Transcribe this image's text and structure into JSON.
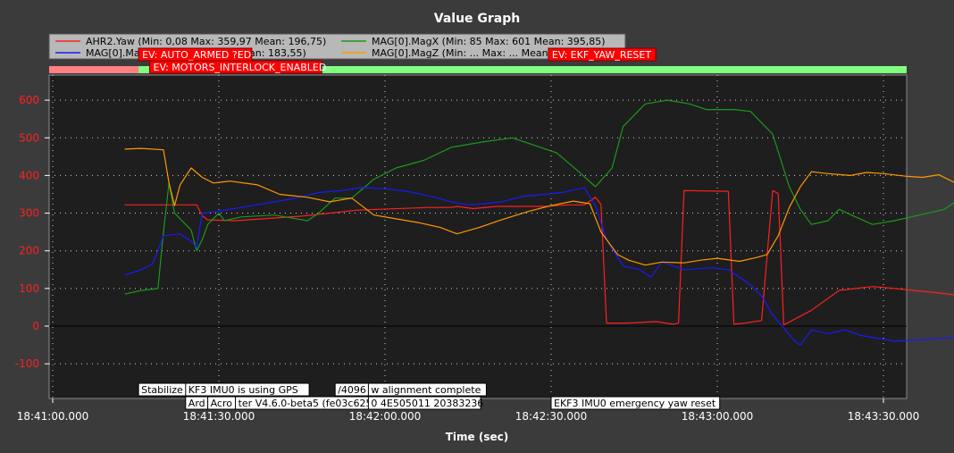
{
  "chart_data": {
    "type": "line",
    "title": "Value Graph",
    "xlabel": "Time (sec)",
    "ylabel": "",
    "x_ticks": [
      "18:41:00.000",
      "18:41:30.000",
      "18:42:00.000",
      "18:42:30.000",
      "18:43:00.000",
      "18:43:30.000"
    ],
    "x_range_sec": [
      0,
      150
    ],
    "ylim": [
      -190,
      690
    ],
    "y_ticks": [
      -100,
      0,
      100,
      200,
      300,
      400,
      500,
      600
    ],
    "grid": true,
    "legend_position": "top-left",
    "series": [
      {
        "name": "AHR2.Yaw",
        "stats": "(Min: 0,08 Max: 359,97 Mean: 196,75)",
        "color": "#ff2020",
        "points": [
          [
            13,
            322
          ],
          [
            26,
            322
          ],
          [
            27,
            293
          ],
          [
            28,
            282
          ],
          [
            33,
            280
          ],
          [
            45,
            292
          ],
          [
            55,
            308
          ],
          [
            68,
            315
          ],
          [
            72,
            315
          ],
          [
            73,
            318
          ],
          [
            76,
            312
          ],
          [
            80,
            318
          ],
          [
            84,
            318
          ],
          [
            89,
            318
          ],
          [
            93,
            322
          ],
          [
            96,
            322
          ],
          [
            98,
            342
          ],
          [
            99,
            323
          ],
          [
            100,
            8
          ],
          [
            104,
            8
          ],
          [
            109,
            12
          ],
          [
            112,
            5
          ],
          [
            113,
            8
          ],
          [
            114,
            360
          ],
          [
            122,
            358
          ],
          [
            123,
            5
          ],
          [
            125,
            8
          ],
          [
            128,
            15
          ],
          [
            130,
            360
          ],
          [
            131,
            352
          ],
          [
            132,
            3
          ],
          [
            137,
            42
          ],
          [
            142,
            95
          ],
          [
            148,
            105
          ],
          [
            152,
            100
          ],
          [
            160,
            88
          ],
          [
            170,
            70
          ],
          [
            174,
            55
          ],
          [
            178,
            15
          ],
          [
            182,
            6
          ],
          [
            186,
            2
          ],
          [
            188,
            0
          ]
        ]
      },
      {
        "name": "MAG[0].MagX",
        "stats": "(Min: 85 Max: 601 Mean: 395,85)",
        "color": "#1a9a1a",
        "points": [
          [
            13,
            85
          ],
          [
            16,
            95
          ],
          [
            19,
            100
          ],
          [
            20,
            250
          ],
          [
            21,
            380
          ],
          [
            22,
            300
          ],
          [
            24,
            270
          ],
          [
            25,
            255
          ],
          [
            26,
            200
          ],
          [
            27,
            230
          ],
          [
            28,
            270
          ],
          [
            30,
            300
          ],
          [
            31,
            280
          ],
          [
            34,
            290
          ],
          [
            40,
            295
          ],
          [
            46,
            280
          ],
          [
            48,
            300
          ],
          [
            51,
            340
          ],
          [
            54,
            340
          ],
          [
            58,
            390
          ],
          [
            62,
            420
          ],
          [
            67,
            440
          ],
          [
            72,
            475
          ],
          [
            78,
            490
          ],
          [
            83,
            500
          ],
          [
            87,
            480
          ],
          [
            91,
            460
          ],
          [
            95,
            410
          ],
          [
            98,
            370
          ],
          [
            101,
            420
          ],
          [
            103,
            530
          ],
          [
            107,
            590
          ],
          [
            111,
            600
          ],
          [
            115,
            590
          ],
          [
            118,
            575
          ],
          [
            123,
            575
          ],
          [
            126,
            570
          ],
          [
            128,
            540
          ],
          [
            130,
            510
          ],
          [
            133,
            370
          ],
          [
            135,
            310
          ],
          [
            137,
            270
          ],
          [
            140,
            280
          ],
          [
            142,
            310
          ],
          [
            145,
            290
          ],
          [
            148,
            270
          ],
          [
            152,
            280
          ],
          [
            155,
            290
          ],
          [
            158,
            300
          ],
          [
            161,
            310
          ],
          [
            163,
            330
          ],
          [
            165,
            370
          ],
          [
            168,
            430
          ],
          [
            171,
            460
          ],
          [
            174,
            470
          ],
          [
            178,
            470
          ]
        ]
      },
      {
        "name": "MAG[0].MagY",
        "stats": "(Min: ... Max: ... Mean: 183,55)",
        "color": "#1a1aff",
        "points": [
          [
            13,
            135
          ],
          [
            16,
            150
          ],
          [
            18,
            165
          ],
          [
            19,
            200
          ],
          [
            20,
            240
          ],
          [
            23,
            245
          ],
          [
            25,
            225
          ],
          [
            26,
            210
          ],
          [
            27,
            300
          ],
          [
            30,
            305
          ],
          [
            34,
            315
          ],
          [
            40,
            330
          ],
          [
            44,
            340
          ],
          [
            48,
            355
          ],
          [
            52,
            360
          ],
          [
            56,
            368
          ],
          [
            60,
            365
          ],
          [
            64,
            358
          ],
          [
            69,
            342
          ],
          [
            72,
            330
          ],
          [
            75,
            322
          ],
          [
            78,
            325
          ],
          [
            81,
            330
          ],
          [
            85,
            345
          ],
          [
            89,
            350
          ],
          [
            92,
            355
          ],
          [
            96,
            368
          ],
          [
            98,
            320
          ],
          [
            100,
            230
          ],
          [
            103,
            160
          ],
          [
            106,
            150
          ],
          [
            108,
            130
          ],
          [
            110,
            170
          ],
          [
            114,
            150
          ],
          [
            119,
            155
          ],
          [
            122,
            150
          ],
          [
            124,
            130
          ],
          [
            126,
            110
          ],
          [
            128,
            80
          ],
          [
            130,
            30
          ],
          [
            132,
            -5
          ],
          [
            134,
            -40
          ],
          [
            135,
            -50
          ],
          [
            137,
            -10
          ],
          [
            140,
            -20
          ],
          [
            143,
            -10
          ],
          [
            146,
            -25
          ],
          [
            152,
            -40
          ],
          [
            158,
            -35
          ],
          [
            163,
            -30
          ],
          [
            166,
            -60
          ],
          [
            169,
            -50
          ],
          [
            171,
            -25
          ],
          [
            173,
            -8
          ],
          [
            175,
            -35
          ],
          [
            178,
            -25
          ],
          [
            181,
            -8
          ],
          [
            183,
            0
          ]
        ]
      },
      {
        "name": "MAG[0].MagZ",
        "stats": "(Min: ... Max: ... Mean: 225,04)",
        "color": "#ff9900",
        "points": [
          [
            13,
            470
          ],
          [
            16,
            472
          ],
          [
            20,
            468
          ],
          [
            21,
            380
          ],
          [
            22,
            320
          ],
          [
            23,
            375
          ],
          [
            25,
            420
          ],
          [
            27,
            395
          ],
          [
            29,
            380
          ],
          [
            32,
            385
          ],
          [
            37,
            375
          ],
          [
            41,
            350
          ],
          [
            46,
            342
          ],
          [
            50,
            330
          ],
          [
            54,
            340
          ],
          [
            58,
            295
          ],
          [
            62,
            285
          ],
          [
            66,
            275
          ],
          [
            70,
            262
          ],
          [
            73,
            245
          ],
          [
            77,
            262
          ],
          [
            81,
            282
          ],
          [
            86,
            305
          ],
          [
            90,
            320
          ],
          [
            94,
            332
          ],
          [
            97,
            325
          ],
          [
            99,
            250
          ],
          [
            102,
            190
          ],
          [
            104,
            175
          ],
          [
            107,
            162
          ],
          [
            110,
            170
          ],
          [
            114,
            168
          ],
          [
            117,
            175
          ],
          [
            120,
            180
          ],
          [
            124,
            172
          ],
          [
            127,
            182
          ],
          [
            129,
            190
          ],
          [
            131,
            240
          ],
          [
            133,
            315
          ],
          [
            135,
            370
          ],
          [
            137,
            410
          ],
          [
            140,
            405
          ],
          [
            144,
            400
          ],
          [
            147,
            408
          ],
          [
            150,
            405
          ],
          [
            154,
            398
          ],
          [
            157,
            395
          ],
          [
            160,
            402
          ],
          [
            163,
            380
          ],
          [
            165,
            355
          ],
          [
            167,
            318
          ],
          [
            170,
            298
          ],
          [
            174,
            296
          ],
          [
            178,
            285
          ],
          [
            180,
            290
          ]
        ]
      }
    ],
    "events": [
      {
        "label": "EV: AUTO_ARMED ?ED",
        "x_sec": 15.5
      },
      {
        "label": "EV: MOTORS_INTERLOCK_ENABLED",
        "x_sec": 17.5
      },
      {
        "label": "EV: EKF_YAW_RESET",
        "x_sec": 89.5
      }
    ],
    "messages": [
      {
        "label": "Stabilize",
        "x_sec": 15.5
      },
      {
        "label": "KF3 IMU0 is using GPS",
        "x_sec": 24
      },
      {
        "label": "/4096",
        "x_sec": 51
      },
      {
        "label": "w alignment complete",
        "x_sec": 57
      },
      {
        "label": "Ard",
        "x_sec": 24
      },
      {
        "label": "Acro",
        "x_sec": 28
      },
      {
        "label": "ter V4.6.0-beta5 (fe03c625)",
        "x_sec": 33
      },
      {
        "label": "0 4E505011 20383236",
        "x_sec": 57
      },
      {
        "label": "EKF3 IMU0 emergency yaw reset",
        "x_sec": 90
      }
    ],
    "status_bar": {
      "armed_from_sec": 15.5,
      "colors": [
        "#ff8080",
        "#80ff80"
      ]
    }
  }
}
